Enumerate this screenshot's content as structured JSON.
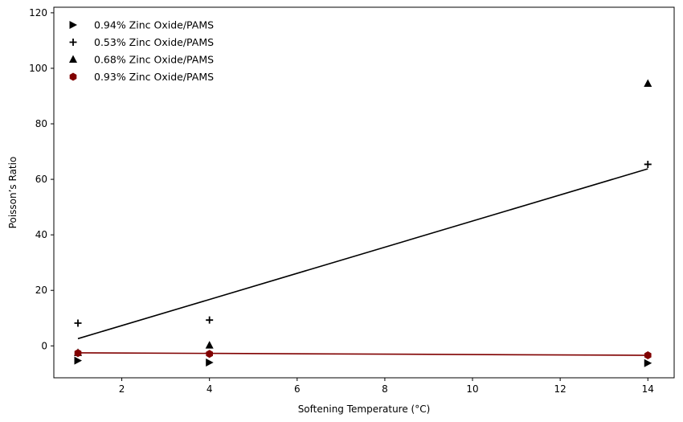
{
  "chart_data": {
    "type": "scatter",
    "xlabel": "Softening Temperature (°C)",
    "ylabel": "Poisson’s Ratio",
    "xlim": [
      0.45,
      14.6
    ],
    "ylim": [
      -11.5,
      122
    ],
    "x_ticks": [
      2,
      4,
      6,
      8,
      10,
      12,
      14
    ],
    "y_ticks": [
      0,
      20,
      40,
      60,
      80,
      100,
      120
    ],
    "grid": false,
    "legend_position": "top-left",
    "series": [
      {
        "name": "0.94% Zinc Oxide/PAMS",
        "marker": "triangle-right",
        "color": "#000000",
        "x": [
          1,
          4,
          14
        ],
        "y": [
          -5.3,
          -6.0,
          -6.2
        ]
      },
      {
        "name": "0.53% Zinc Oxide/PAMS",
        "marker": "plus",
        "color": "#000000",
        "x": [
          1,
          4,
          14
        ],
        "y": [
          8.2,
          9.3,
          65.4
        ]
      },
      {
        "name": "0.68% Zinc Oxide/PAMS",
        "marker": "triangle-up",
        "color": "#000000",
        "x": [
          1,
          4,
          14
        ],
        "y": [
          -2.5,
          0.2,
          94.5
        ]
      },
      {
        "name": "0.93% Zinc Oxide/PAMS",
        "marker": "hexagon",
        "color": "#800000",
        "x": [
          1,
          4,
          14
        ],
        "y": [
          -2.6,
          -2.9,
          -3.4
        ]
      }
    ],
    "trend_lines": [
      {
        "color": "#000000",
        "x": [
          1,
          14
        ],
        "y": [
          2.6,
          63.8
        ]
      },
      {
        "color": "#800000",
        "x": [
          1,
          14
        ],
        "y": [
          -2.5,
          -3.4
        ]
      }
    ]
  }
}
